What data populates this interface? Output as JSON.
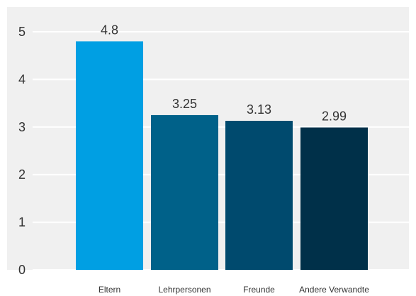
{
  "chart_data": {
    "type": "bar",
    "categories": [
      "Eltern",
      "Lehrpersonen",
      "Freunde",
      "Andere Verwandte"
    ],
    "values": [
      4.8,
      3.25,
      3.13,
      2.99
    ],
    "value_labels": [
      "4.8",
      "3.25",
      "3.13",
      "2.99"
    ],
    "ylim": [
      0,
      5
    ],
    "yticks": [
      0,
      1,
      2,
      3,
      4,
      5
    ],
    "ytick_labels": [
      "0",
      "1",
      "2",
      "3",
      "4",
      "5"
    ],
    "title": "",
    "xlabel": "",
    "ylabel": "",
    "grid": true,
    "colors": {
      "plot_background": "#f0f0f0",
      "gridline": "#ffffff",
      "bars": [
        "#009fe3",
        "#006189",
        "#004a6e",
        "#003049"
      ]
    }
  }
}
